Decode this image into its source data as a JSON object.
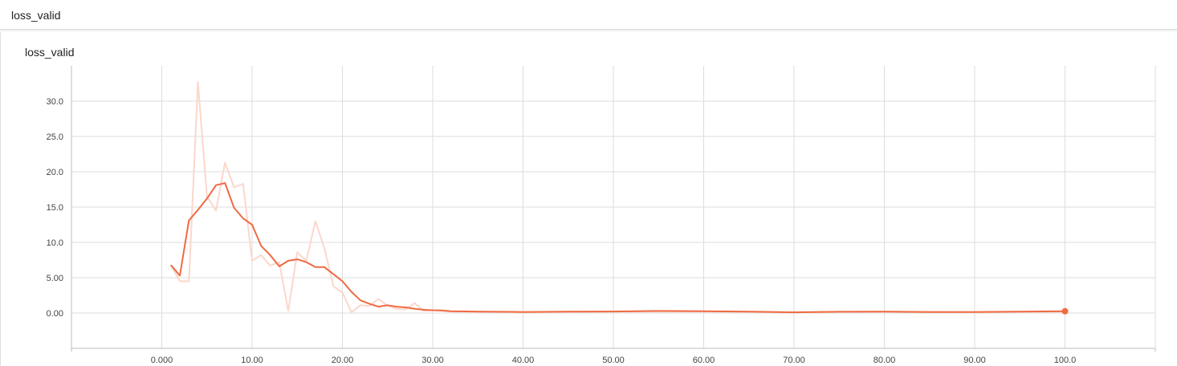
{
  "header": {
    "title": "loss_valid"
  },
  "card": {
    "title": "loss_valid"
  },
  "colors": {
    "smoothed": "#ef6a43",
    "raw": "#fbd7cb",
    "grid": "#dddddd",
    "axis": "#bdbdbd"
  },
  "chart_data": {
    "type": "line",
    "title": "loss_valid",
    "xlabel": "",
    "ylabel": "",
    "xlim": [
      -10,
      110
    ],
    "ylim": [
      -5,
      35
    ],
    "x_ticks": [
      0,
      10,
      20,
      30,
      40,
      50,
      60,
      70,
      80,
      90,
      100
    ],
    "x_tick_labels": [
      "0.000",
      "10.00",
      "20.00",
      "30.00",
      "40.00",
      "50.00",
      "60.00",
      "70.00",
      "80.00",
      "90.00",
      "100.0"
    ],
    "y_ticks": [
      0,
      5,
      10,
      15,
      20,
      25,
      30
    ],
    "y_tick_labels": [
      "0.00",
      "5.00",
      "10.0",
      "15.0",
      "20.0",
      "25.0",
      "30.0"
    ],
    "grid": true,
    "series": [
      {
        "role": "raw",
        "x": [
          1,
          2,
          3,
          4,
          5,
          6,
          7,
          8,
          9,
          10,
          11,
          12,
          13,
          14,
          15,
          16,
          17,
          18,
          19,
          20,
          21,
          22,
          23,
          24,
          25,
          26,
          27,
          28,
          29,
          30,
          31,
          32,
          35,
          40,
          50,
          60,
          70,
          80,
          90,
          100
        ],
        "values": [
          6.8,
          4.5,
          4.5,
          32.7,
          16.5,
          14.5,
          21.3,
          17.8,
          18.3,
          7.4,
          8.2,
          6.7,
          7.2,
          0.3,
          8.6,
          7.4,
          13.0,
          9.2,
          3.8,
          2.9,
          0.1,
          1.1,
          1.0,
          2.0,
          1.0,
          0.6,
          0.5,
          1.4,
          0.3,
          0.4,
          0.3,
          0.2,
          0.2,
          0.1,
          0.2,
          0.2,
          0.1,
          0.2,
          0.1,
          0.2
        ]
      },
      {
        "role": "smoothed",
        "x": [
          1,
          2,
          3,
          4,
          5,
          6,
          7,
          8,
          9,
          10,
          11,
          12,
          13,
          14,
          15,
          16,
          17,
          18,
          19,
          20,
          21,
          22,
          23,
          24,
          25,
          26,
          27,
          28,
          29,
          30,
          31,
          32,
          35,
          40,
          45,
          50,
          55,
          60,
          65,
          70,
          75,
          80,
          85,
          90,
          95,
          100
        ],
        "values": [
          6.8,
          5.3,
          13.1,
          14.6,
          16.2,
          18.1,
          18.4,
          14.9,
          13.4,
          12.5,
          9.5,
          8.2,
          6.6,
          7.4,
          7.6,
          7.2,
          6.5,
          6.5,
          5.5,
          4.5,
          3.0,
          1.8,
          1.3,
          0.9,
          1.1,
          0.9,
          0.8,
          0.6,
          0.45,
          0.4,
          0.38,
          0.25,
          0.2,
          0.15,
          0.2,
          0.22,
          0.3,
          0.25,
          0.2,
          0.1,
          0.18,
          0.2,
          0.15,
          0.15,
          0.2,
          0.25
        ]
      }
    ]
  }
}
